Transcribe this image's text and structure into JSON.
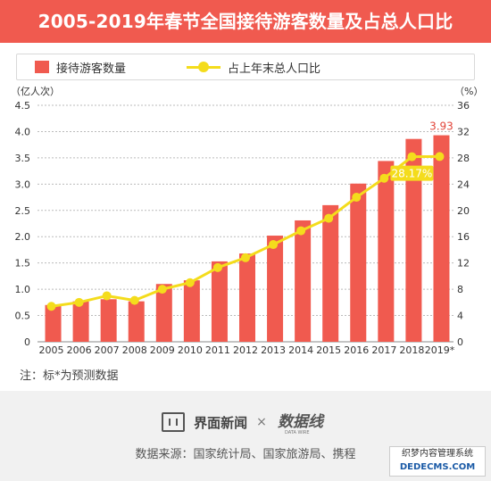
{
  "header": {
    "title": "2005-2019年春节全国接待游客数量及占总人口比"
  },
  "legend": {
    "bar_label": "接待游客数量",
    "line_label": "占上年末总人口比"
  },
  "chart_data": {
    "type": "bar+line",
    "categories": [
      "2005",
      "2006",
      "2007",
      "2008",
      "2009",
      "2010",
      "2011",
      "2012",
      "2013",
      "2014",
      "2015",
      "2016",
      "2017",
      "2018",
      "2019*"
    ],
    "series": [
      {
        "name": "接待游客数量",
        "type": "bar",
        "axis": "left",
        "values": [
          0.7,
          0.77,
          0.81,
          0.77,
          1.1,
          1.17,
          1.53,
          1.68,
          2.02,
          2.31,
          2.6,
          3.01,
          3.44,
          3.86,
          3.93
        ]
      },
      {
        "name": "占上年末总人口比",
        "type": "line",
        "axis": "right",
        "values": [
          5.4,
          6.0,
          7.0,
          6.3,
          8.0,
          9.0,
          11.3,
          12.8,
          14.8,
          16.9,
          18.8,
          22.0,
          24.9,
          28.17,
          28.2
        ]
      }
    ],
    "left_axis": {
      "unit": "（亿人次）",
      "ticks": [
        "0",
        "0.5",
        "1.0",
        "1.5",
        "2.0",
        "2.5",
        "3.0",
        "3.5",
        "4.0",
        "4.5"
      ],
      "ylim": [
        0,
        4.5
      ]
    },
    "right_axis": {
      "unit": "（%）",
      "ticks": [
        "0",
        "4",
        "8",
        "12",
        "16",
        "20",
        "24",
        "28",
        "32",
        "36"
      ],
      "ylim": [
        0,
        36
      ]
    },
    "annotations": [
      {
        "series": "接待游客数量",
        "index": 14,
        "text": "3.93"
      },
      {
        "series": "占上年末总人口比",
        "index": 13,
        "text": "28.17%"
      }
    ],
    "grid": true
  },
  "note": "注：标*为预测数据",
  "footer": {
    "brand": "界面新闻",
    "times": "×",
    "logo_text": "数据线",
    "logo_sub": "DATA WIRE",
    "source": "数据来源：国家统计局、国家旅游局、携程"
  },
  "site_tag": {
    "name": "织梦内容管理系统",
    "url": "DEDECMS.COM"
  },
  "colors": {
    "bar": "#f05a4f",
    "line": "#f4dc1c",
    "label_red": "#e2463b",
    "grid": "#bbbbbb",
    "title_bg": "#f05a4f"
  }
}
